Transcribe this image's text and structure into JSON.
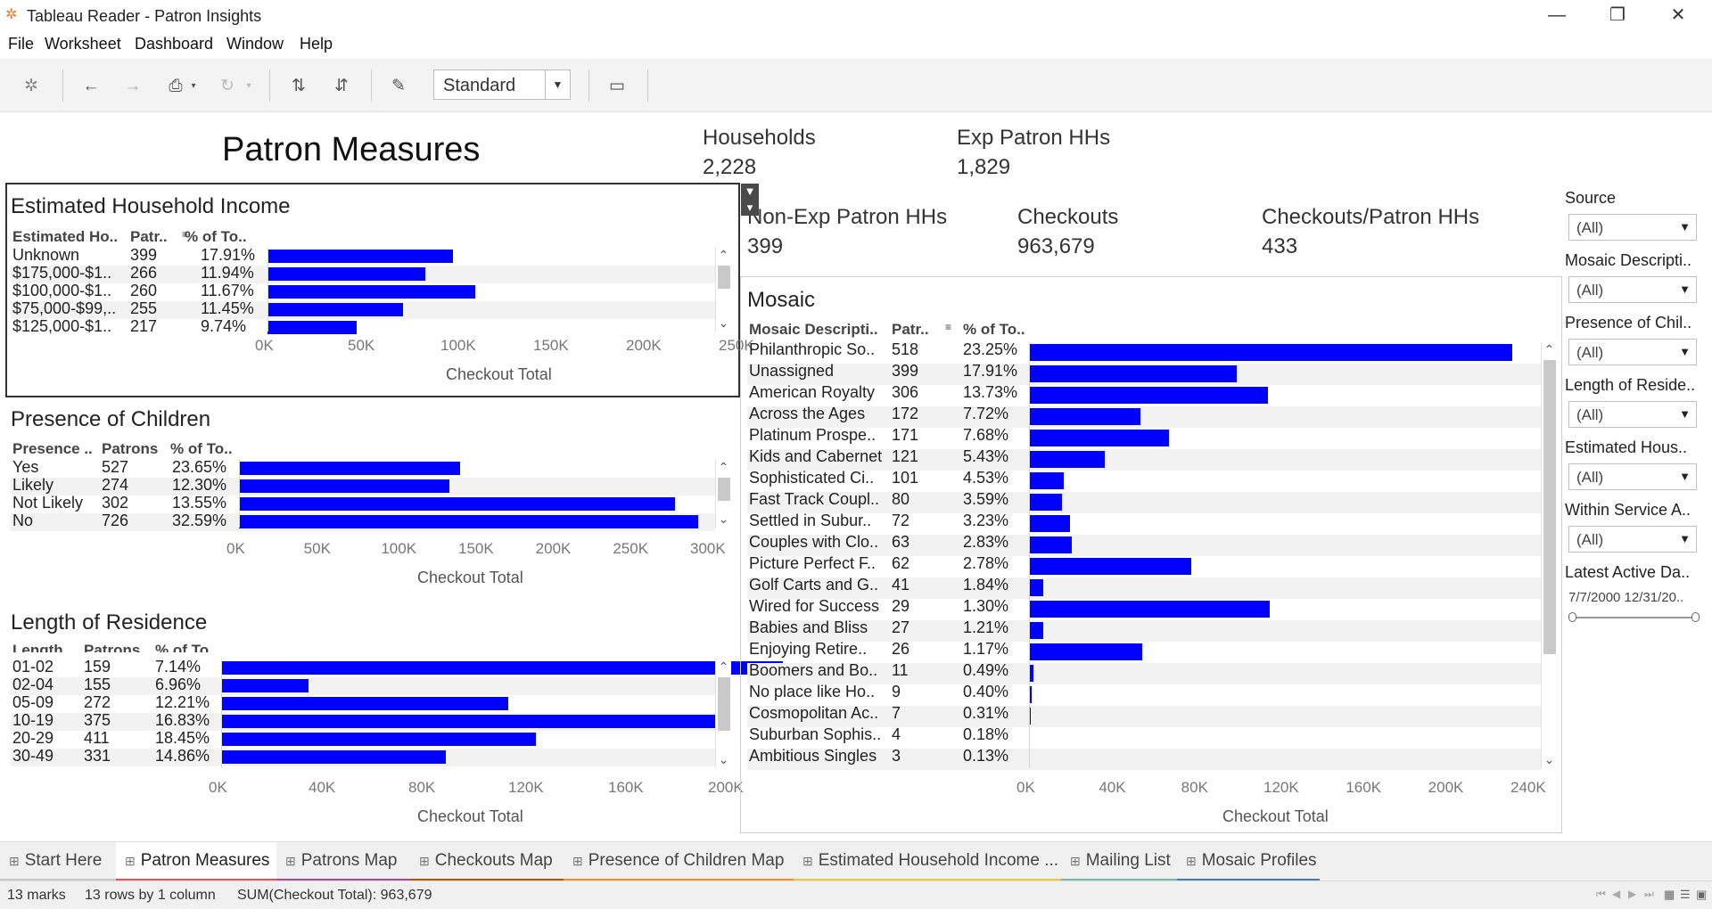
{
  "window": {
    "title": "Tableau Reader - Patron Insights"
  },
  "menu": [
    "File",
    "Worksheet",
    "Dashboard",
    "Window",
    "Help"
  ],
  "toolbar": {
    "view_mode": "Standard"
  },
  "dashboard": {
    "title": "Patron Measures"
  },
  "kpis": [
    {
      "label": "Households",
      "value": "2,228"
    },
    {
      "label": "Exp Patron HHs",
      "value": "1,829"
    },
    {
      "label": "Non-Exp Patron HHs",
      "value": "399"
    },
    {
      "label": "Checkouts",
      "value": "963,679"
    },
    {
      "label": "Checkouts/Patron HHs",
      "value": "433"
    }
  ],
  "income": {
    "title": "Estimated Household Income",
    "headers": [
      "Estimated Ho..",
      "Patr..",
      "% of To.."
    ],
    "rows": [
      {
        "label": "Unknown",
        "patrons": "399",
        "pct": "17.91%",
        "checkout": 100000
      },
      {
        "label": "$175,000-$1..",
        "patrons": "266",
        "pct": "11.94%",
        "checkout": 85000
      },
      {
        "label": "$100,000-$1..",
        "patrons": "260",
        "pct": "11.67%",
        "checkout": 112000
      },
      {
        "label": "$75,000-$99,..",
        "patrons": "255",
        "pct": "11.45%",
        "checkout": 73000
      },
      {
        "label": "$125,000-$1..",
        "patrons": "217",
        "pct": "9.74%",
        "checkout": 48000
      }
    ],
    "axis_ticks": [
      "0K",
      "50K",
      "100K",
      "150K",
      "200K",
      "250K"
    ],
    "axis_max": 250000,
    "axis_title": "Checkout Total"
  },
  "children": {
    "title": "Presence of Children",
    "headers": [
      "Presence ..",
      "Patrons",
      "% of To.."
    ],
    "rows": [
      {
        "label": "Yes",
        "patrons": "527",
        "pct": "23.65%",
        "checkout": 143000
      },
      {
        "label": "Likely",
        "patrons": "274",
        "pct": "12.30%",
        "checkout": 136000
      },
      {
        "label": "Not Likely",
        "patrons": "302",
        "pct": "13.55%",
        "checkout": 282000
      },
      {
        "label": "No",
        "patrons": "726",
        "pct": "32.59%",
        "checkout": 297000
      }
    ],
    "axis_ticks": [
      "0K",
      "50K",
      "100K",
      "150K",
      "200K",
      "250K",
      "300K"
    ],
    "axis_max": 300000,
    "axis_title": "Checkout Total"
  },
  "residence": {
    "title": "Length of Residence",
    "headers": [
      "Length ..",
      "Patrons",
      "% of To.."
    ],
    "rows": [
      {
        "label": "01-02",
        "patrons": "159",
        "pct": "7.14%",
        "checkout": 225000
      },
      {
        "label": "02-04",
        "patrons": "155",
        "pct": "6.96%",
        "checkout": 35000
      },
      {
        "label": "05-09",
        "patrons": "272",
        "pct": "12.21%",
        "checkout": 115000
      },
      {
        "label": "10-19",
        "patrons": "375",
        "pct": "16.83%",
        "checkout": 200000
      },
      {
        "label": "20-29",
        "patrons": "411",
        "pct": "18.45%",
        "checkout": 126000
      },
      {
        "label": "30-49",
        "patrons": "331",
        "pct": "14.86%",
        "checkout": 90000
      }
    ],
    "axis_ticks": [
      "0K",
      "40K",
      "80K",
      "120K",
      "160K",
      "200K"
    ],
    "axis_max": 200000,
    "axis_title": "Checkout Total"
  },
  "mosaic": {
    "title": "Mosaic",
    "headers": [
      "Mosaic Descripti..",
      "Patr..",
      "% of To.."
    ],
    "rows": [
      {
        "label": "Philanthropic So..",
        "patrons": "518",
        "pct": "23.25%",
        "checkout": 235000
      },
      {
        "label": "Unassigned",
        "patrons": "399",
        "pct": "17.91%",
        "checkout": 101000
      },
      {
        "label": "American Royalty",
        "patrons": "306",
        "pct": "13.73%",
        "checkout": 116000
      },
      {
        "label": "Across the Ages",
        "patrons": "172",
        "pct": "7.72%",
        "checkout": 54000
      },
      {
        "label": "Platinum Prospe..",
        "patrons": "171",
        "pct": "7.68%",
        "checkout": 68000
      },
      {
        "label": "Kids and Cabernet",
        "patrons": "121",
        "pct": "5.43%",
        "checkout": 37000
      },
      {
        "label": "Sophisticated Ci..",
        "patrons": "101",
        "pct": "4.53%",
        "checkout": 17000
      },
      {
        "label": "Fast Track Coupl..",
        "patrons": "80",
        "pct": "3.59%",
        "checkout": 16000
      },
      {
        "label": "Settled in Subur..",
        "patrons": "72",
        "pct": "3.23%",
        "checkout": 20000
      },
      {
        "label": "Couples with Clo..",
        "patrons": "63",
        "pct": "2.83%",
        "checkout": 21000
      },
      {
        "label": "Picture Perfect F..",
        "patrons": "62",
        "pct": "2.78%",
        "checkout": 79000
      },
      {
        "label": "Golf Carts and G..",
        "patrons": "41",
        "pct": "1.84%",
        "checkout": 7000
      },
      {
        "label": "Wired for Success",
        "patrons": "29",
        "pct": "1.30%",
        "checkout": 117000
      },
      {
        "label": "Babies and Bliss",
        "patrons": "27",
        "pct": "1.21%",
        "checkout": 7000
      },
      {
        "label": "Enjoying Retire..",
        "patrons": "26",
        "pct": "1.17%",
        "checkout": 55000
      },
      {
        "label": "Boomers and Bo..",
        "patrons": "11",
        "pct": "0.49%",
        "checkout": 2000
      },
      {
        "label": "No place like Ho..",
        "patrons": "9",
        "pct": "0.40%",
        "checkout": 1500
      },
      {
        "label": "Cosmopolitan Ac..",
        "patrons": "7",
        "pct": "0.31%",
        "checkout": 1000
      },
      {
        "label": "Suburban Sophis..",
        "patrons": "4",
        "pct": "0.18%",
        "checkout": 600
      },
      {
        "label": "Ambitious Singles",
        "patrons": "3",
        "pct": "0.13%",
        "checkout": 300
      }
    ],
    "axis_ticks": [
      "0K",
      "40K",
      "80K",
      "120K",
      "160K",
      "200K",
      "240K"
    ],
    "axis_max": 240000,
    "axis_title": "Checkout Total"
  },
  "filters": [
    {
      "label": "Source",
      "value": "(All)"
    },
    {
      "label": "Mosaic Descripti..",
      "value": "(All)"
    },
    {
      "label": "Presence of Chil..",
      "value": "(All)"
    },
    {
      "label": "Length of Reside..",
      "value": "(All)"
    },
    {
      "label": "Estimated Hous..",
      "value": "(All)"
    },
    {
      "label": "Within Service A..",
      "value": "(All)"
    }
  ],
  "date_filter": {
    "label": "Latest Active Da..",
    "range": "7/7/2000 12/31/20.."
  },
  "tabs": [
    {
      "label": "Start Here",
      "color": "#c8c8c8",
      "active": false
    },
    {
      "label": "Patron Measures",
      "color": "#e15759",
      "active": true
    },
    {
      "label": "Patrons Map",
      "color": "#a05195",
      "active": false
    },
    {
      "label": "Checkouts Map",
      "color": "#b35806",
      "active": false
    },
    {
      "label": "Presence of Children Map",
      "color": "#f28e2b",
      "active": false
    },
    {
      "label": "Estimated Household Income ...",
      "color": "#edc948",
      "active": false
    },
    {
      "label": "Mailing List",
      "color": "#76b7b2",
      "active": false
    },
    {
      "label": "Mosaic Profiles",
      "color": "#4e79a7",
      "active": false
    }
  ],
  "status": {
    "marks": "13 marks",
    "rows": "13 rows by 1 column",
    "sum": "SUM(Checkout Total): 963,679"
  },
  "colors": {
    "bar": "#0000ff",
    "band": "#f2f2f2"
  }
}
